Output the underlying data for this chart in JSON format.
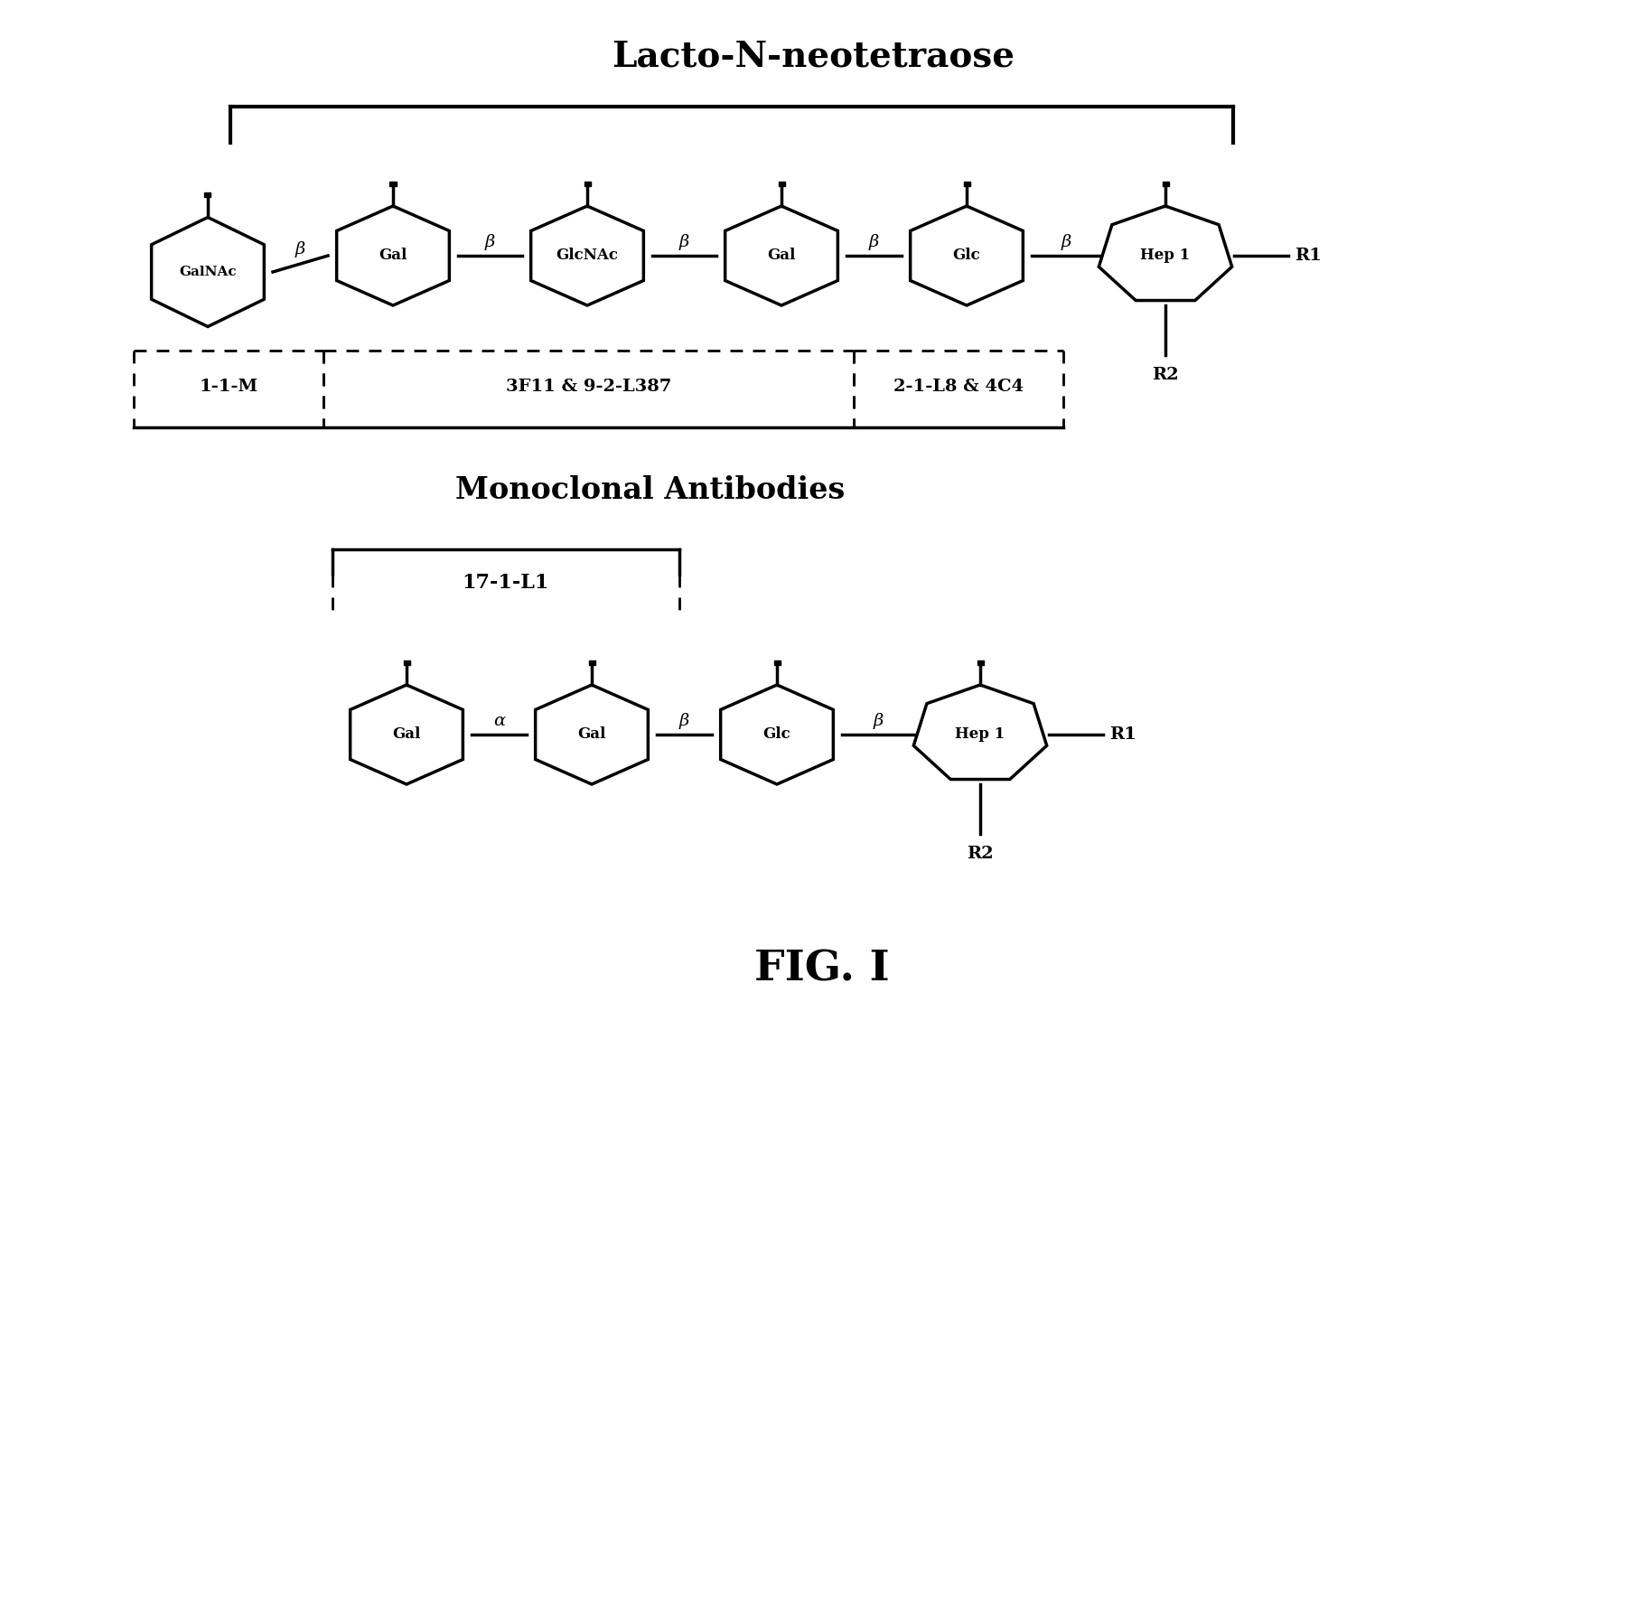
{
  "title": "Lacto-N-neotetraose",
  "title2": "Monoclonal Antibodies",
  "title3": "FIG. I",
  "bg_color": "#ffffff",
  "sugar_units_top": [
    "GalNAc",
    "Gal",
    "GlcNAc",
    "Gal",
    "Glc",
    "Hep 1"
  ],
  "sugar_units_bottom": [
    "Gal",
    "Gal",
    "Glc",
    "Hep 1"
  ],
  "linkers_top": [
    "β",
    "β",
    "β",
    "β",
    "β"
  ],
  "linkers_bottom": [
    "α",
    "β",
    "β"
  ],
  "antibody_labels_top": [
    "1-1-M",
    "3F11 & 9-2-L387",
    "2-1-L8 & 4C4"
  ],
  "antibody_label_bottom": "17-1-L1"
}
